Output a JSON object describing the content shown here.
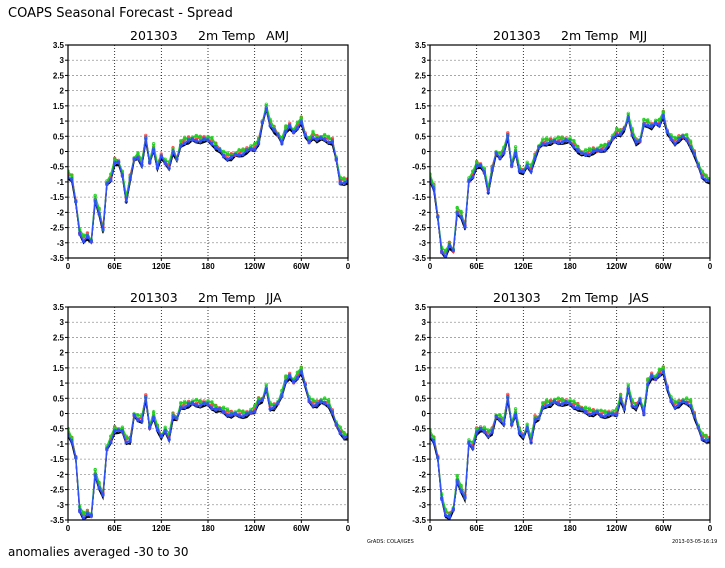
{
  "title": "COAPS Seasonal Forecast - Spread",
  "footer": "anomalies averaged -30 to 30",
  "credit": "GrADS: COLA/IGES",
  "timestamp": "2013-03-05-16:19",
  "chart_data": [
    {
      "type": "line",
      "title": {
        "date": "201303",
        "variable": "2m Temp",
        "season": "AMJ"
      },
      "xlim": [
        0,
        360
      ],
      "ylim": [
        -3.5,
        3.5
      ],
      "yticks": [
        "3.5",
        "3",
        "2.5",
        "2",
        "1.5",
        "1",
        "0.5",
        "0",
        "-0.5",
        "-1",
        "-1.5",
        "-2",
        "-2.5",
        "-3",
        "-3.5"
      ],
      "xticks": [
        "0",
        "60E",
        "120E",
        "180",
        "120W",
        "60W",
        "0"
      ],
      "grid": "dotted",
      "x_step_deg": 5,
      "ensemble_mean": [
        -0.8,
        -0.9,
        -1.7,
        -2.7,
        -2.9,
        -2.8,
        -3.0,
        -1.6,
        -2.0,
        -2.6,
        -1.1,
        -0.9,
        -0.35,
        -0.4,
        -0.8,
        -1.6,
        -0.9,
        -0.3,
        -0.2,
        -0.4,
        0.4,
        -0.4,
        0.1,
        -0.5,
        -0.2,
        -0.4,
        -0.5,
        0.0,
        -0.3,
        0.2,
        0.32,
        0.35,
        0.36,
        0.37,
        0.37,
        0.37,
        0.35,
        0.3,
        0.15,
        0.0,
        -0.15,
        -0.2,
        -0.2,
        -0.15,
        -0.1,
        -0.05,
        0.0,
        0.05,
        0.1,
        0.3,
        0.9,
        1.4,
        0.9,
        0.7,
        0.5,
        0.3,
        0.7,
        0.8,
        0.6,
        0.8,
        1.0,
        0.5,
        0.3,
        0.5,
        0.4,
        0.4,
        0.4,
        0.35,
        0.3,
        -0.3,
        -1.0,
        -1.0,
        -1.0
      ],
      "series": [
        {
          "name": "black members",
          "color": "#000000",
          "offset": -0.06
        },
        {
          "name": "red members",
          "color": "#ff4040",
          "offset": 0.07
        },
        {
          "name": "green members",
          "color": "#20d020",
          "offset": 0.1
        },
        {
          "name": "blue members",
          "color": "#3050ff",
          "offset": 0.0
        }
      ]
    },
    {
      "type": "line",
      "title": {
        "date": "201303",
        "variable": "2m Temp",
        "season": "MJJ"
      },
      "xlim": [
        0,
        360
      ],
      "ylim": [
        -3.5,
        3.5
      ],
      "yticks": [
        "3.5",
        "3",
        "2.5",
        "2",
        "1.5",
        "1",
        "0.5",
        "0",
        "-0.5",
        "-1",
        "-1.5",
        "-2",
        "-2.5",
        "-3",
        "-3.5"
      ],
      "xticks": [
        "0",
        "60E",
        "120E",
        "180",
        "120W",
        "60W",
        "0"
      ],
      "grid": "dotted",
      "x_step_deg": 5,
      "ensemble_mean": [
        -0.9,
        -1.2,
        -2.2,
        -3.3,
        -3.4,
        -3.1,
        -3.3,
        -2.0,
        -2.1,
        -2.5,
        -1.0,
        -0.8,
        -0.45,
        -0.5,
        -0.7,
        -1.3,
        -0.6,
        -0.1,
        -0.2,
        0.0,
        0.5,
        -0.5,
        0.0,
        -0.6,
        -0.7,
        -0.5,
        -0.6,
        -0.2,
        0.1,
        0.25,
        0.3,
        0.3,
        0.3,
        0.32,
        0.35,
        0.33,
        0.3,
        0.2,
        0.05,
        -0.1,
        -0.1,
        -0.05,
        0.0,
        0.0,
        0.05,
        0.1,
        0.2,
        0.4,
        0.6,
        0.6,
        0.7,
        1.1,
        0.6,
        0.3,
        0.3,
        0.9,
        0.9,
        0.8,
        0.9,
        0.9,
        1.2,
        0.6,
        0.4,
        0.3,
        0.4,
        0.45,
        0.4,
        0.2,
        -0.1,
        -0.5,
        -0.8,
        -0.9,
        -1.0
      ],
      "series": [
        {
          "name": "black members",
          "color": "#000000",
          "offset": -0.06
        },
        {
          "name": "red members",
          "color": "#ff4040",
          "offset": 0.06
        },
        {
          "name": "green members",
          "color": "#20d020",
          "offset": 0.1
        },
        {
          "name": "blue members",
          "color": "#3050ff",
          "offset": 0.0
        }
      ]
    },
    {
      "type": "line",
      "title": {
        "date": "201303",
        "variable": "2m Temp",
        "season": "JJA"
      },
      "xlim": [
        0,
        360
      ],
      "ylim": [
        -3.5,
        3.5
      ],
      "yticks": [
        "3.5",
        "3",
        "2.5",
        "2",
        "1.5",
        "1",
        "0.5",
        "0",
        "-0.5",
        "-1",
        "-1.5",
        "-2",
        "-2.5",
        "-3",
        "-3.5"
      ],
      "xticks": [
        "0",
        "60E",
        "120E",
        "180",
        "120W",
        "60W",
        "0"
      ],
      "grid": "dotted",
      "x_step_deg": 5,
      "ensemble_mean": [
        -0.65,
        -0.9,
        -1.5,
        -3.2,
        -3.4,
        -3.3,
        -3.4,
        -2.0,
        -2.4,
        -2.7,
        -1.2,
        -0.9,
        -0.55,
        -0.6,
        -0.6,
        -0.9,
        -0.9,
        -0.1,
        -0.2,
        -0.2,
        0.5,
        -0.5,
        -0.1,
        -0.5,
        -0.8,
        -0.6,
        -0.8,
        -0.1,
        -0.2,
        0.2,
        0.25,
        0.28,
        0.3,
        0.3,
        0.3,
        0.3,
        0.28,
        0.22,
        0.15,
        0.1,
        0.05,
        0.0,
        -0.05,
        -0.05,
        -0.05,
        -0.05,
        -0.05,
        0.0,
        0.1,
        0.4,
        0.4,
        0.8,
        0.2,
        0.2,
        0.3,
        0.6,
        1.1,
        1.2,
        1.0,
        1.2,
        1.4,
        0.9,
        0.4,
        0.3,
        0.3,
        0.35,
        0.35,
        0.3,
        0.0,
        -0.4,
        -0.6,
        -0.75,
        -0.8
      ],
      "series": [
        {
          "name": "black members",
          "color": "#000000",
          "offset": -0.06
        },
        {
          "name": "red members",
          "color": "#ff4040",
          "offset": 0.06
        },
        {
          "name": "green members",
          "color": "#20d020",
          "offset": 0.1
        },
        {
          "name": "blue members",
          "color": "#3050ff",
          "offset": 0.0
        }
      ]
    },
    {
      "type": "line",
      "title": {
        "date": "201303",
        "variable": "2m Temp",
        "season": "JAS"
      },
      "xlim": [
        0,
        360
      ],
      "ylim": [
        -3.5,
        3.5
      ],
      "yticks": [
        "3.5",
        "3",
        "2.5",
        "2",
        "1.5",
        "1",
        "0.5",
        "0",
        "-0.5",
        "-1",
        "-1.5",
        "-2",
        "-2.5",
        "-3",
        "-3.5"
      ],
      "xticks": [
        "0",
        "60E",
        "120E",
        "180",
        "120W",
        "60W",
        "0"
      ],
      "grid": "dotted",
      "x_step_deg": 5,
      "ensemble_mean": [
        -0.7,
        -0.9,
        -1.5,
        -2.8,
        -3.3,
        -3.4,
        -3.2,
        -2.2,
        -2.5,
        -2.8,
        -1.0,
        -1.1,
        -0.6,
        -0.55,
        -0.6,
        -0.7,
        -0.6,
        -0.15,
        -0.2,
        -0.3,
        0.5,
        -0.4,
        0.0,
        -0.6,
        -0.8,
        -0.5,
        -0.9,
        -0.2,
        -0.2,
        0.2,
        0.3,
        0.3,
        0.35,
        0.35,
        0.35,
        0.33,
        0.3,
        0.25,
        0.2,
        0.1,
        0.05,
        0.02,
        0.0,
        0.0,
        -0.05,
        -0.05,
        -0.05,
        -0.05,
        0.0,
        0.5,
        0.1,
        0.8,
        0.3,
        0.2,
        0.4,
        0.0,
        1.0,
        1.2,
        1.1,
        1.3,
        1.4,
        0.8,
        0.4,
        0.25,
        0.3,
        0.35,
        0.35,
        0.3,
        -0.1,
        -0.5,
        -0.8,
        -0.85,
        -0.9
      ],
      "series": [
        {
          "name": "black members",
          "color": "#000000",
          "offset": -0.06
        },
        {
          "name": "red members",
          "color": "#ff4040",
          "offset": 0.07
        },
        {
          "name": "green members",
          "color": "#20d020",
          "offset": 0.1
        },
        {
          "name": "blue members",
          "color": "#3050ff",
          "offset": 0.0
        }
      ]
    }
  ]
}
